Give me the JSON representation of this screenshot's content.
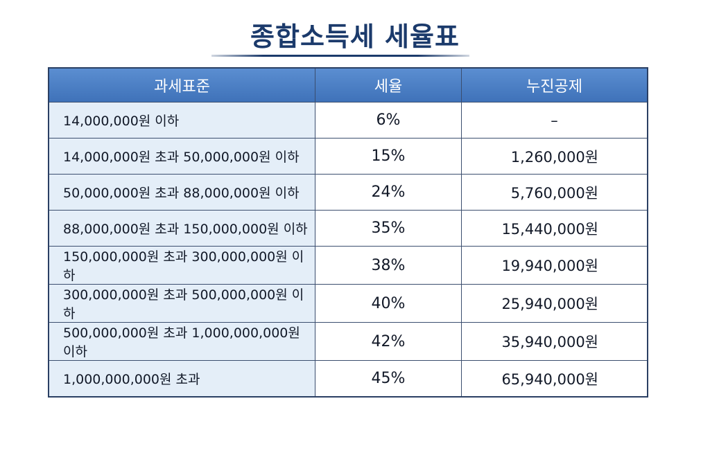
{
  "header": {
    "title": "종합소득세 세율표"
  },
  "table": {
    "columns": [
      "과세표준",
      "세율",
      "누진공제"
    ],
    "rows": [
      [
        "14,000,000원 이하",
        "6%",
        "–"
      ],
      [
        "14,000,000원 초과 50,000,000원 이하",
        "15%",
        "1,260,000원"
      ],
      [
        "50,000,000원 초과 88,000,000원 이하",
        "24%",
        "5,760,000원"
      ],
      [
        "88,000,000원 초과 150,000,000원 이하",
        "35%",
        "15,440,000원"
      ],
      [
        "150,000,000원 초과 300,000,000원 이하",
        "38%",
        "19,940,000원"
      ],
      [
        "300,000,000원 초과 500,000,000원 이하",
        "40%",
        "25,940,000원"
      ],
      [
        "500,000,000원 초과 1,000,000,000원 이하",
        "42%",
        "35,940,000원"
      ],
      [
        "1,000,000,000원 초과",
        "45%",
        "65,940,000원"
      ]
    ]
  }
}
